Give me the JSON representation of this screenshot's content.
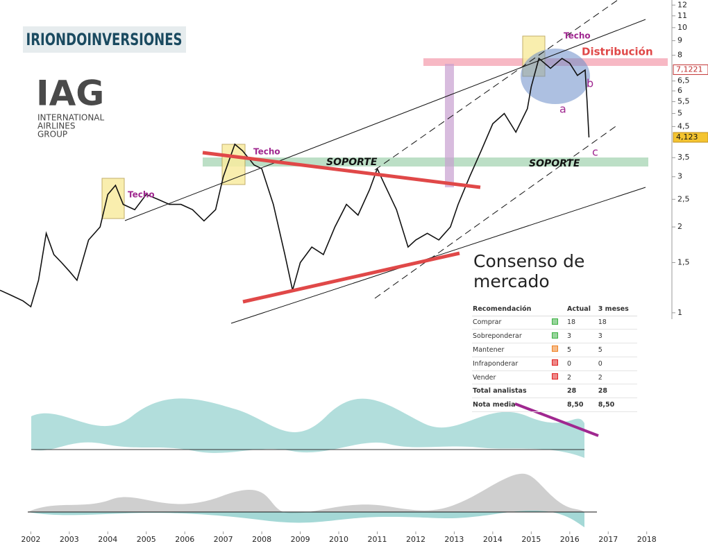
{
  "brand": "IRIONDOINVERSIONES",
  "logo": {
    "mark": "IAG",
    "lines": [
      "INTERNATIONAL",
      "AIRLINES",
      "GROUP"
    ]
  },
  "chart_data": {
    "type": "line",
    "log_scale": true,
    "series": [
      {
        "name": "IAG",
        "color": "#111111",
        "x": [
          2001.2,
          2001.5,
          2001.8,
          2002.0,
          2002.2,
          2002.4,
          2002.6,
          2002.8,
          2003.0,
          2003.2,
          2003.5,
          2003.8,
          2004.0,
          2004.2,
          2004.4,
          2004.7,
          2005.0,
          2005.3,
          2005.6,
          2005.9,
          2006.2,
          2006.5,
          2006.8,
          2007.0,
          2007.3,
          2007.5,
          2007.8,
          2008.0,
          2008.3,
          2008.6,
          2008.8,
          2009.0,
          2009.3,
          2009.6,
          2009.9,
          2010.2,
          2010.5,
          2010.8,
          2011.0,
          2011.2,
          2011.5,
          2011.8,
          2012.0,
          2012.3,
          2012.6,
          2012.9,
          2013.1,
          2013.4,
          2013.7,
          2014.0,
          2014.3,
          2014.6,
          2014.9,
          2015.0,
          2015.2,
          2015.5,
          2015.8,
          2016.0,
          2016.2,
          2016.4,
          2016.45,
          2016.5
        ],
        "values": [
          1.2,
          1.15,
          1.1,
          1.05,
          1.3,
          1.9,
          1.6,
          1.5,
          1.4,
          1.3,
          1.8,
          2.0,
          2.6,
          2.8,
          2.4,
          2.3,
          2.6,
          2.5,
          2.4,
          2.4,
          2.3,
          2.1,
          2.3,
          3.0,
          3.9,
          3.7,
          3.3,
          3.2,
          2.4,
          1.6,
          1.2,
          1.5,
          1.7,
          1.6,
          2.0,
          2.4,
          2.2,
          2.7,
          3.2,
          2.8,
          2.3,
          1.7,
          1.8,
          1.9,
          1.8,
          2.0,
          2.4,
          3.0,
          3.7,
          4.6,
          5.0,
          4.3,
          5.2,
          6.2,
          7.8,
          7.2,
          7.8,
          7.5,
          6.8,
          7.1,
          5.5,
          4.12
        ]
      }
    ],
    "xlim": [
      2001.2,
      2018.6
    ],
    "xticks": [
      2002,
      2003,
      2004,
      2005,
      2006,
      2007,
      2008,
      2009,
      2010,
      2011,
      2012,
      2013,
      2014,
      2015,
      2016,
      2017,
      2018
    ],
    "ylim": [
      0.95,
      12.5
    ],
    "yticks": [
      1,
      {
        "value": 1.5,
        "label": "1,5"
      },
      2,
      {
        "value": 2.5,
        "label": "2,5"
      },
      3,
      {
        "value": 3.5,
        "label": "3,5"
      },
      {
        "value": 4.5,
        "label": "4,5"
      },
      5,
      {
        "value": 5.5,
        "label": "5,5"
      },
      6,
      {
        "value": 6.5,
        "label": "6,5"
      },
      8,
      9,
      10,
      11,
      12
    ],
    "price_labels": [
      {
        "value": 7.1221,
        "label": "7,1221"
      },
      {
        "value": 4.123,
        "label": "4,123"
      }
    ],
    "annotations": [
      "Techo",
      "Techo",
      "Techo",
      "Distribución",
      "SOPORTE",
      "SOPORTE",
      "a",
      "b",
      "c"
    ]
  },
  "consensus": {
    "title": "Consenso de mercado",
    "columns": [
      "Recomendación",
      "Actual",
      "3 meses"
    ],
    "rows": [
      [
        "Comprar",
        18,
        18
      ],
      [
        "Sobreponderar",
        3,
        3
      ],
      [
        "Mantener",
        5,
        5
      ],
      [
        "Infraponderar",
        0,
        0
      ],
      [
        "Vender",
        2,
        2
      ],
      [
        "Total analistas",
        28,
        28
      ],
      [
        "Nota media",
        "8,50",
        "8,50"
      ]
    ]
  }
}
